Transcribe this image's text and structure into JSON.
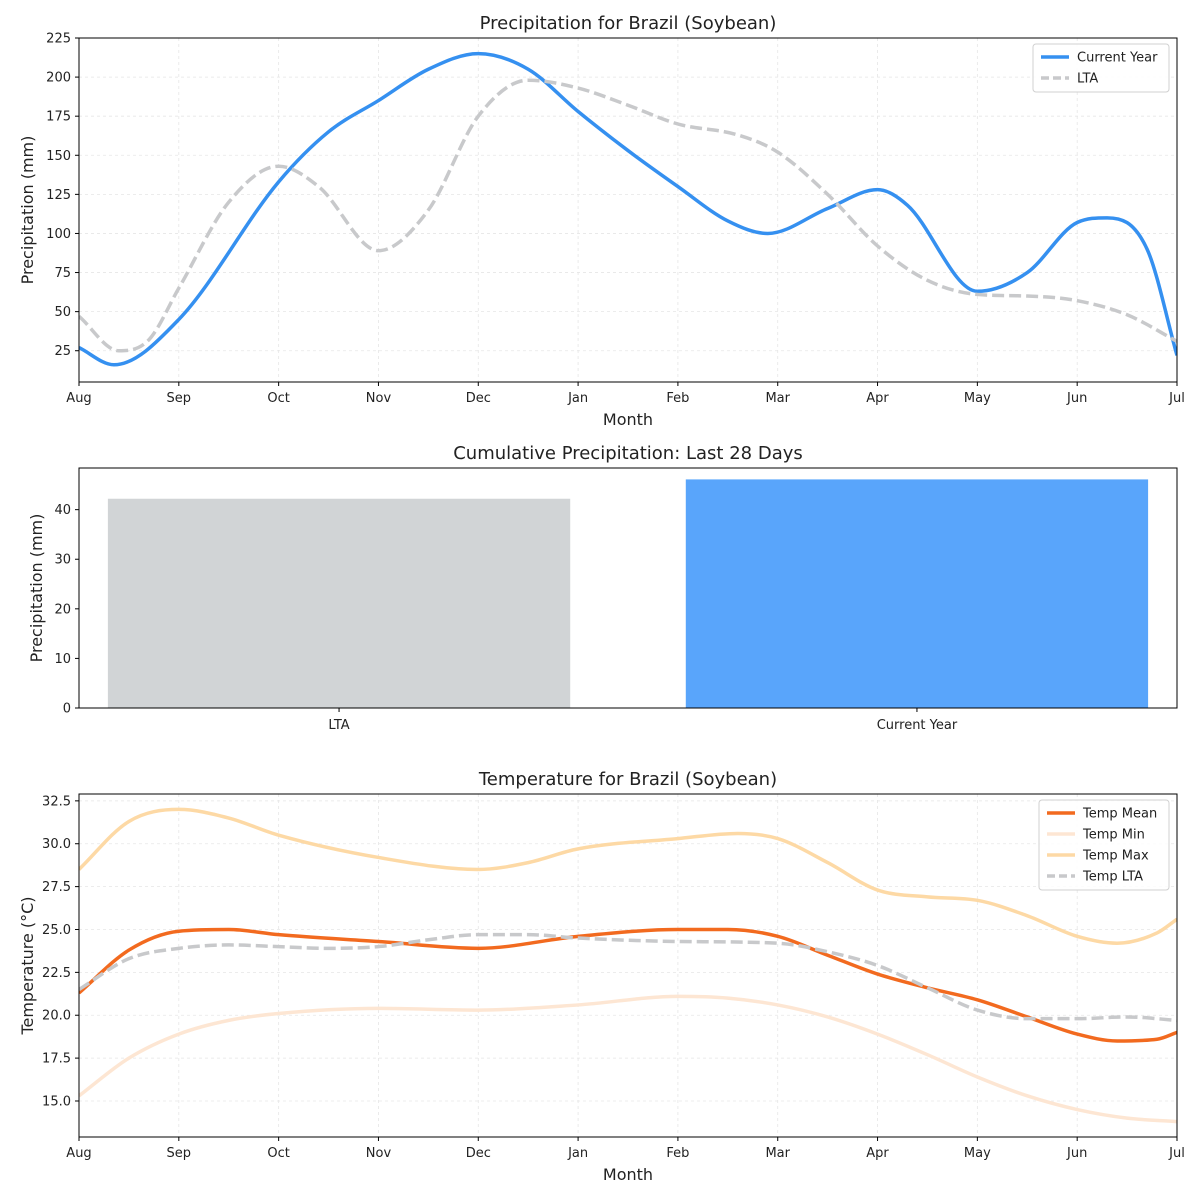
{
  "chart_data": [
    {
      "type": "line",
      "title": "Precipitation for Brazil (Soybean)",
      "xlabel": "Month",
      "ylabel": "Precipitation (mm)",
      "x_ticks": [
        "Aug",
        "Sep",
        "Oct",
        "Nov",
        "Dec",
        "Jan",
        "Feb",
        "Mar",
        "Apr",
        "May",
        "Jun",
        "Jul"
      ],
      "x_range": [
        0,
        11
      ],
      "ylim": [
        5,
        225
      ],
      "y_ticks": [
        "25",
        "50",
        "75",
        "100",
        "125",
        "150",
        "175",
        "200",
        "225"
      ],
      "grid": true,
      "legend_position": "top-right",
      "series": [
        {
          "name": "Current Year",
          "color": "#3590f0",
          "style": "solid",
          "points": [
            [
              0,
              27
            ],
            [
              0.35,
              16
            ],
            [
              1,
              45
            ],
            [
              2,
              133
            ],
            [
              2.5,
              165
            ],
            [
              3,
              185
            ],
            [
              3.5,
              205
            ],
            [
              4,
              215
            ],
            [
              4.5,
              205
            ],
            [
              5,
              178
            ],
            [
              5.5,
              153
            ],
            [
              6,
              130
            ],
            [
              6.5,
              108
            ],
            [
              6.9,
              100
            ],
            [
              7.5,
              116
            ],
            [
              8,
              128
            ],
            [
              8.3,
              118
            ],
            [
              9,
              63
            ],
            [
              9.5,
              75
            ],
            [
              10,
              107
            ],
            [
              10.3,
              110
            ],
            [
              10.7,
              90
            ],
            [
              11,
              22
            ]
          ]
        },
        {
          "name": "LTA",
          "color": "#c8c9cb",
          "style": "dashed",
          "points": [
            [
              0,
              47
            ],
            [
              0.4,
              25
            ],
            [
              0.7,
              32
            ],
            [
              1,
              65
            ],
            [
              1.5,
              120
            ],
            [
              2,
              143
            ],
            [
              2.4,
              130
            ],
            [
              3,
              89
            ],
            [
              3.5,
              115
            ],
            [
              4,
              175
            ],
            [
              4.5,
              198
            ],
            [
              5,
              193
            ],
            [
              5.5,
              182
            ],
            [
              6,
              170
            ],
            [
              6.6,
              163
            ],
            [
              7,
              152
            ],
            [
              7.5,
              125
            ],
            [
              8,
              92
            ],
            [
              8.5,
              70
            ],
            [
              9,
              61
            ],
            [
              9.5,
              60
            ],
            [
              10,
              57
            ],
            [
              10.5,
              48
            ],
            [
              11,
              31
            ]
          ]
        }
      ]
    },
    {
      "type": "bar",
      "title": "Cumulative Precipitation: Last 28 Days",
      "xlabel": "",
      "ylabel": "Precipitation (mm)",
      "categories": [
        "LTA",
        "Current Year"
      ],
      "values": [
        42.2,
        46.1
      ],
      "colors": [
        "#d1d4d6",
        "#59a5fb"
      ],
      "ylim": [
        0,
        48.4
      ],
      "y_ticks": [
        "0",
        "10",
        "20",
        "30",
        "40"
      ],
      "grid": false
    },
    {
      "type": "line",
      "title": "Temperature for Brazil (Soybean)",
      "xlabel": "Month",
      "ylabel": "Temperature (°C)",
      "x_ticks": [
        "Aug",
        "Sep",
        "Oct",
        "Nov",
        "Dec",
        "Jan",
        "Feb",
        "Mar",
        "Apr",
        "May",
        "Jun",
        "Jul"
      ],
      "x_range": [
        0,
        11
      ],
      "ylim": [
        12.9,
        32.9
      ],
      "y_ticks": [
        "15.0",
        "17.5",
        "20.0",
        "22.5",
        "25.0",
        "27.5",
        "30.0",
        "32.5"
      ],
      "grid": true,
      "legend_position": "top-right",
      "series": [
        {
          "name": "Temp Mean",
          "color": "#f26a1f",
          "style": "solid",
          "points": [
            [
              0,
              21.3
            ],
            [
              0.5,
              23.8
            ],
            [
              1,
              24.9
            ],
            [
              1.5,
              25.0
            ],
            [
              2,
              24.7
            ],
            [
              3,
              24.3
            ],
            [
              4,
              23.9
            ],
            [
              5,
              24.6
            ],
            [
              6,
              25.0
            ],
            [
              6.5,
              25.0
            ],
            [
              7,
              24.6
            ],
            [
              7.5,
              23.5
            ],
            [
              8,
              22.4
            ],
            [
              8.5,
              21.6
            ],
            [
              9,
              20.9
            ],
            [
              9.5,
              19.9
            ],
            [
              10,
              18.9
            ],
            [
              10.4,
              18.5
            ],
            [
              10.8,
              18.6
            ],
            [
              11,
              19.0
            ]
          ]
        },
        {
          "name": "Temp Min",
          "color": "#fde6d3",
          "style": "solid",
          "points": [
            [
              0,
              15.3
            ],
            [
              0.5,
              17.5
            ],
            [
              1,
              18.9
            ],
            [
              1.5,
              19.7
            ],
            [
              2,
              20.1
            ],
            [
              3,
              20.4
            ],
            [
              4,
              20.3
            ],
            [
              5,
              20.6
            ],
            [
              6,
              21.1
            ],
            [
              6.5,
              21.0
            ],
            [
              7,
              20.6
            ],
            [
              7.5,
              19.9
            ],
            [
              8,
              18.9
            ],
            [
              8.5,
              17.7
            ],
            [
              9,
              16.4
            ],
            [
              9.5,
              15.3
            ],
            [
              10,
              14.5
            ],
            [
              10.5,
              14.0
            ],
            [
              11,
              13.8
            ]
          ]
        },
        {
          "name": "Temp Max",
          "color": "#fdd9a5",
          "style": "solid",
          "points": [
            [
              0,
              28.5
            ],
            [
              0.5,
              31.3
            ],
            [
              1,
              32.0
            ],
            [
              1.5,
              31.5
            ],
            [
              2,
              30.5
            ],
            [
              3,
              29.2
            ],
            [
              4,
              28.5
            ],
            [
              4.5,
              28.9
            ],
            [
              5,
              29.7
            ],
            [
              6,
              30.3
            ],
            [
              6.6,
              30.6
            ],
            [
              7,
              30.3
            ],
            [
              7.5,
              28.9
            ],
            [
              8,
              27.3
            ],
            [
              8.5,
              26.9
            ],
            [
              9,
              26.7
            ],
            [
              9.5,
              25.8
            ],
            [
              10,
              24.6
            ],
            [
              10.4,
              24.2
            ],
            [
              10.8,
              24.8
            ],
            [
              11,
              25.6
            ]
          ]
        },
        {
          "name": "Temp LTA",
          "color": "#c8c9cb",
          "style": "dashed",
          "points": [
            [
              0,
              21.5
            ],
            [
              0.5,
              23.3
            ],
            [
              1,
              23.9
            ],
            [
              1.5,
              24.1
            ],
            [
              2,
              24.0
            ],
            [
              2.5,
              23.9
            ],
            [
              3,
              24.0
            ],
            [
              3.5,
              24.4
            ],
            [
              4,
              24.7
            ],
            [
              4.5,
              24.7
            ],
            [
              5,
              24.5
            ],
            [
              6,
              24.3
            ],
            [
              7,
              24.2
            ],
            [
              7.5,
              23.7
            ],
            [
              8,
              22.9
            ],
            [
              8.5,
              21.6
            ],
            [
              9,
              20.3
            ],
            [
              9.5,
              19.8
            ],
            [
              10,
              19.8
            ],
            [
              10.5,
              19.9
            ],
            [
              11,
              19.7
            ]
          ]
        }
      ]
    }
  ]
}
